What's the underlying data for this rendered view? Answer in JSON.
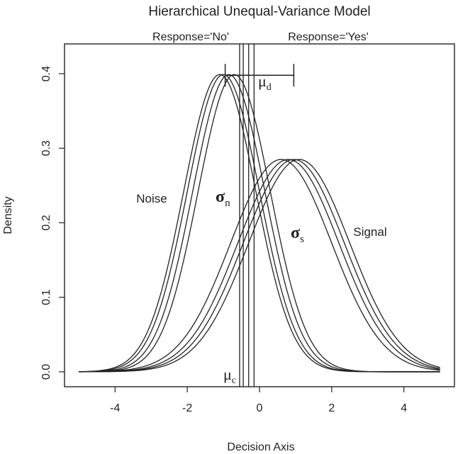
{
  "chart_data": {
    "type": "line",
    "title": "Hierarchical Unequal-Variance Model",
    "xlabel": "Decision Axis",
    "ylabel": "Density",
    "xlim": [
      -5.4,
      5.4
    ],
    "ylim": [
      -0.02,
      0.44
    ],
    "xticks": [
      -4,
      -2,
      0,
      2,
      4
    ],
    "yticks": [
      0.0,
      0.1,
      0.2,
      0.3,
      0.4
    ],
    "xtick_labels": [
      "-4",
      "-2",
      "0",
      "2",
      "4"
    ],
    "ytick_labels": [
      "0.0",
      "0.1",
      "0.2",
      "0.3",
      "0.4"
    ],
    "x_range": [
      -5,
      5
    ],
    "grid": false,
    "region_labels": {
      "left": "Response='No'",
      "right": "Response='Yes'"
    },
    "curve_labels": {
      "noise": "Noise",
      "signal": "Signal"
    },
    "symbols": {
      "mu_d": {
        "base": "μ",
        "sub": "d"
      },
      "sigma_n": {
        "base": "σ",
        "sub": "n"
      },
      "sigma_s": {
        "base": "σ",
        "sub": "s"
      },
      "mu_c": {
        "base": "μ",
        "sub": "c"
      }
    },
    "noise_series": [
      {
        "mean": -1.1,
        "sd": 1.0
      },
      {
        "mean": -1.0,
        "sd": 1.0
      },
      {
        "mean": -0.85,
        "sd": 1.0
      },
      {
        "mean": -0.7,
        "sd": 1.0
      }
    ],
    "signal_series": [
      {
        "mean": 0.6,
        "sd": 1.4
      },
      {
        "mean": 0.8,
        "sd": 1.4
      },
      {
        "mean": 0.95,
        "sd": 1.4
      },
      {
        "mean": 1.1,
        "sd": 1.4
      }
    ],
    "criterion_lines": [
      -0.55,
      -0.45,
      -0.3,
      -0.15
    ],
    "mu_d_bracket": {
      "x_start": -0.95,
      "x_end": 0.95,
      "y": 0.398
    }
  }
}
